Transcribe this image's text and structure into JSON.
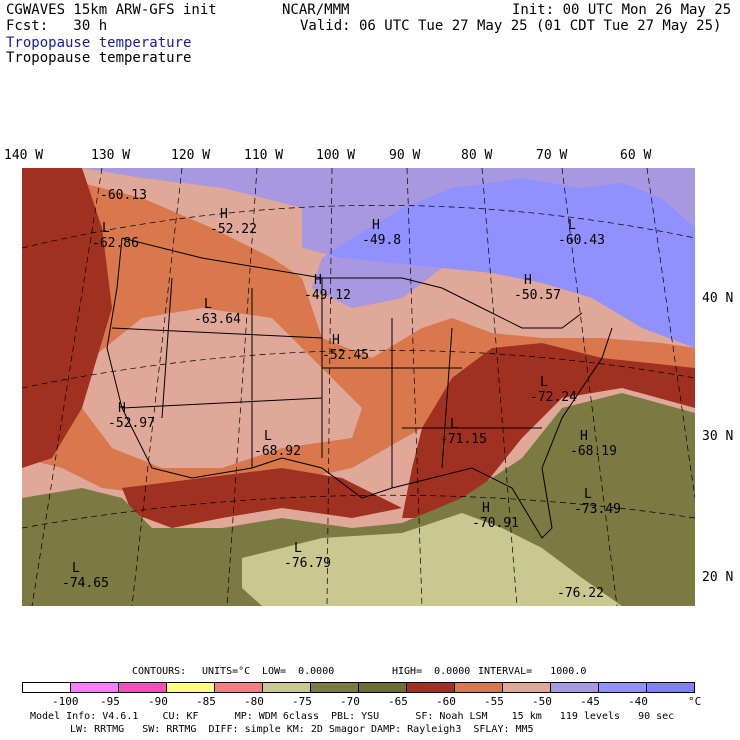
{
  "header": {
    "line1_left": "CGWAVES 15km ARW-GFS init",
    "line1_mid": "NCAR/MMM",
    "line1_right": "Init: 00 UTC Mon 26 May 25",
    "line2_left": "Fcst:   30 h",
    "line2_right": "Valid: 06 UTC Tue 27 May 25 (01 CDT Tue 27 May 25)",
    "line3": "Tropopause temperature",
    "line4": "Tropopause temperature"
  },
  "longitude_labels": [
    "140 W",
    "130 W",
    "120 W",
    "110 W",
    "100 W",
    "90 W",
    "80 W",
    "70 W",
    "60 W"
  ],
  "latitude_labels": [
    "40 N",
    "30 N",
    "20 N"
  ],
  "map_labels": [
    {
      "letter": "",
      "value": "-60.13"
    },
    {
      "letter": "H",
      "value": "-52.22"
    },
    {
      "letter": "L",
      "value": "-62.86"
    },
    {
      "letter": "H",
      "value": "-49.8"
    },
    {
      "letter": "L",
      "value": "-60.43"
    },
    {
      "letter": "H",
      "value": "-49.12"
    },
    {
      "letter": "H",
      "value": "-50.57"
    },
    {
      "letter": "L",
      "value": "-63.64"
    },
    {
      "letter": "H",
      "value": "-52.45"
    },
    {
      "letter": "L",
      "value": "-72.24"
    },
    {
      "letter": "H",
      "value": "-52.97"
    },
    {
      "letter": "L",
      "value": "-68.92"
    },
    {
      "letter": "L",
      "value": "-71.15"
    },
    {
      "letter": "H",
      "value": "-68.19"
    },
    {
      "letter": "H",
      "value": "-70.91"
    },
    {
      "letter": "L",
      "value": "-73.49"
    },
    {
      "letter": "L",
      "value": "-76.79"
    },
    {
      "letter": "L",
      "value": "-74.65"
    },
    {
      "letter": "",
      "value": "-76.22"
    }
  ],
  "contours": {
    "label": "CONTOURS:",
    "units": "UNITS=°C",
    "low": "LOW=  0.0000",
    "high": "HIGH=  0.0000",
    "interval": "INTERVAL=   1000.0"
  },
  "colorbar": {
    "colors": [
      "#ffffff",
      "#ff7cff",
      "#ff4ac0",
      "#ffff7f",
      "#f08080",
      "#c8c890",
      "#7a7a42",
      "#6e6e32",
      "#a03020",
      "#d8784c",
      "#e0a898",
      "#a898e0",
      "#9090ff",
      "#8080ff"
    ],
    "ticks": [
      "-100",
      "-95",
      "-90",
      "-85",
      "-80",
      "-75",
      "-70",
      "-65",
      "-60",
      "-55",
      "-50",
      "-45",
      "-40"
    ],
    "unit": "°C"
  },
  "footer": {
    "line1": "Model Info: V4.6.1    CU: KF      MP: WDM 6class  PBL: YSU      SF: Noah LSM    15 km   119 levels   90 sec",
    "line2": "LW: RRTMG   SW: RRTMG  DIFF: simple KM: 2D Smagor DAMP: Rayleigh3  SFLAY: MM5"
  }
}
